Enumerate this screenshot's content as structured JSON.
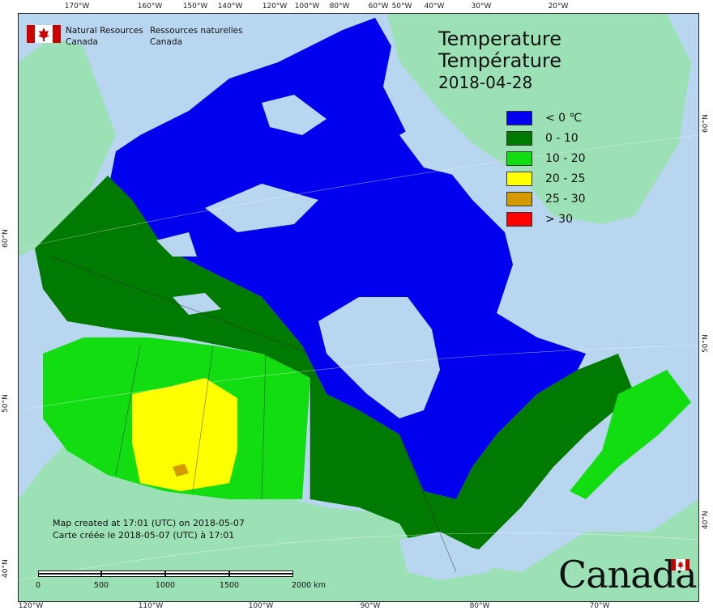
{
  "agency": {
    "name_en_1": "Natural Resources",
    "name_en_2": "Canada",
    "name_fr_1": "Ressources naturelles",
    "name_fr_2": "Canada"
  },
  "map_title": {
    "line1": "Temperature",
    "line2": "Température",
    "date": "2018-04-28"
  },
  "legend": [
    {
      "label": "< 0 ℃",
      "color": "#0000ee"
    },
    {
      "label": "0 - 10",
      "color": "#007a00"
    },
    {
      "label": "10 - 20",
      "color": "#11dd11"
    },
    {
      "label": "20 - 25",
      "color": "#ffff00"
    },
    {
      "label": "25 - 30",
      "color": "#d49b00"
    },
    {
      "label": "> 30",
      "color": "#ff0000"
    }
  ],
  "colors": {
    "water": "#b9d6f0",
    "foreign_land": "#9ce0b6",
    "cold": "#0000ee",
    "cool": "#007a00",
    "mild": "#11dd11",
    "warm": "#ffff00",
    "hot": "#d49b00"
  },
  "credit": {
    "line_en": "Map created at 17:01 (UTC) on 2018-05-07",
    "line_fr": "Carte créée le 2018-05-07 (UTC) à 17:01"
  },
  "scale": {
    "labels": [
      "0",
      "500",
      "1000",
      "1500",
      "2000 km"
    ]
  },
  "ticks_top": [
    "170°W",
    "160°W",
    "150°W",
    "140°W",
    "120°W",
    "100°W",
    "80°W",
    "60°W",
    "50°W",
    "40°W",
    "30°W",
    "20°W"
  ],
  "ticks_bottom": [
    "120°W",
    "110°W",
    "100°W",
    "90°W",
    "80°W",
    "70°W"
  ],
  "ticks_left": [
    "60°N",
    "50°N",
    "40°N"
  ],
  "ticks_right": [
    "60°N",
    "50°N",
    "40°N"
  ],
  "wordmark": "Canada"
}
